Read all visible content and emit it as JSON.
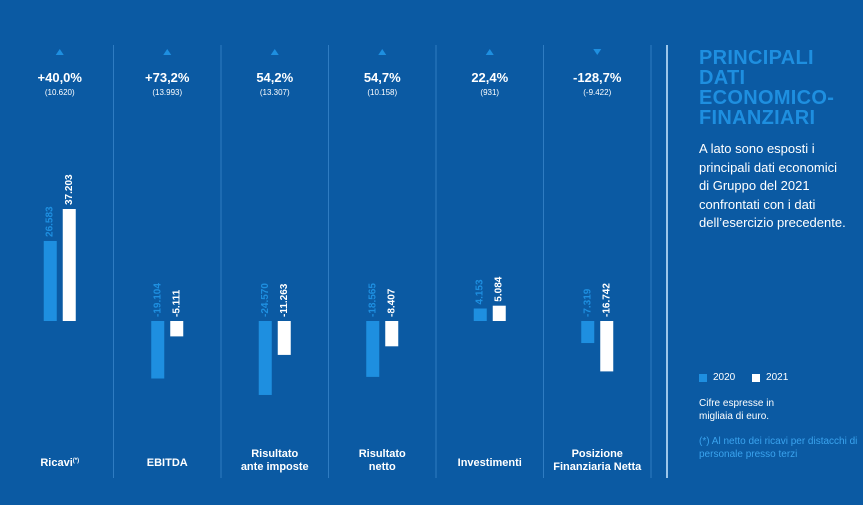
{
  "chart_data": {
    "type": "bar",
    "categories": [
      {
        "label_lines": [
          "Ricavi"
        ],
        "superscript": "(*)",
        "change": "+40,0%",
        "delta": "(10.620)",
        "direction": "up"
      },
      {
        "label_lines": [
          "EBITDA"
        ],
        "superscript": "",
        "change": "+73,2%",
        "delta": "(13.993)",
        "direction": "up"
      },
      {
        "label_lines": [
          "Risultato",
          "ante imposte"
        ],
        "superscript": "",
        "change": "54,2%",
        "delta": "(13.307)",
        "direction": "up"
      },
      {
        "label_lines": [
          "Risultato",
          "netto"
        ],
        "superscript": "",
        "change": "54,7%",
        "delta": "(10.158)",
        "direction": "up"
      },
      {
        "label_lines": [
          "Investimenti"
        ],
        "superscript": "",
        "change": "22,4%",
        "delta": "(931)",
        "direction": "up"
      },
      {
        "label_lines": [
          "Posizione",
          "Finanziaria Netta"
        ],
        "superscript": "",
        "change": "-128,7%",
        "delta": "(-9.422)",
        "direction": "down"
      }
    ],
    "series": [
      {
        "name": "2020",
        "color": "#1e8fe0",
        "values": [
          26583,
          -19104,
          -24570,
          -18565,
          4153,
          -7319
        ],
        "labels": [
          "26.583",
          "-19.104",
          "-24.570",
          "-18.565",
          "4.153",
          "-7.319"
        ]
      },
      {
        "name": "2021",
        "color": "#ffffff",
        "values": [
          37203,
          -5111,
          -11263,
          -8407,
          5084,
          -16742
        ],
        "labels": [
          "37.203",
          "-5.111",
          "-11.263",
          "-8.407",
          "5.084",
          "-16.742"
        ]
      }
    ],
    "ylim": [
      -30000,
      45000
    ]
  },
  "side": {
    "title": "PRINCIPALI DATI ECONOMICO-FINANZIARI",
    "description": "A lato sono esposti i principali dati economici di Gruppo del 2021 confrontati con i dati dell’esercizio precedente.",
    "legend": [
      "2020",
      "2021"
    ],
    "units": "Cifre espresse in migliaia di euro.",
    "footnote": "(*) Al netto dei ricavi per distacchi di personale presso terzi"
  }
}
